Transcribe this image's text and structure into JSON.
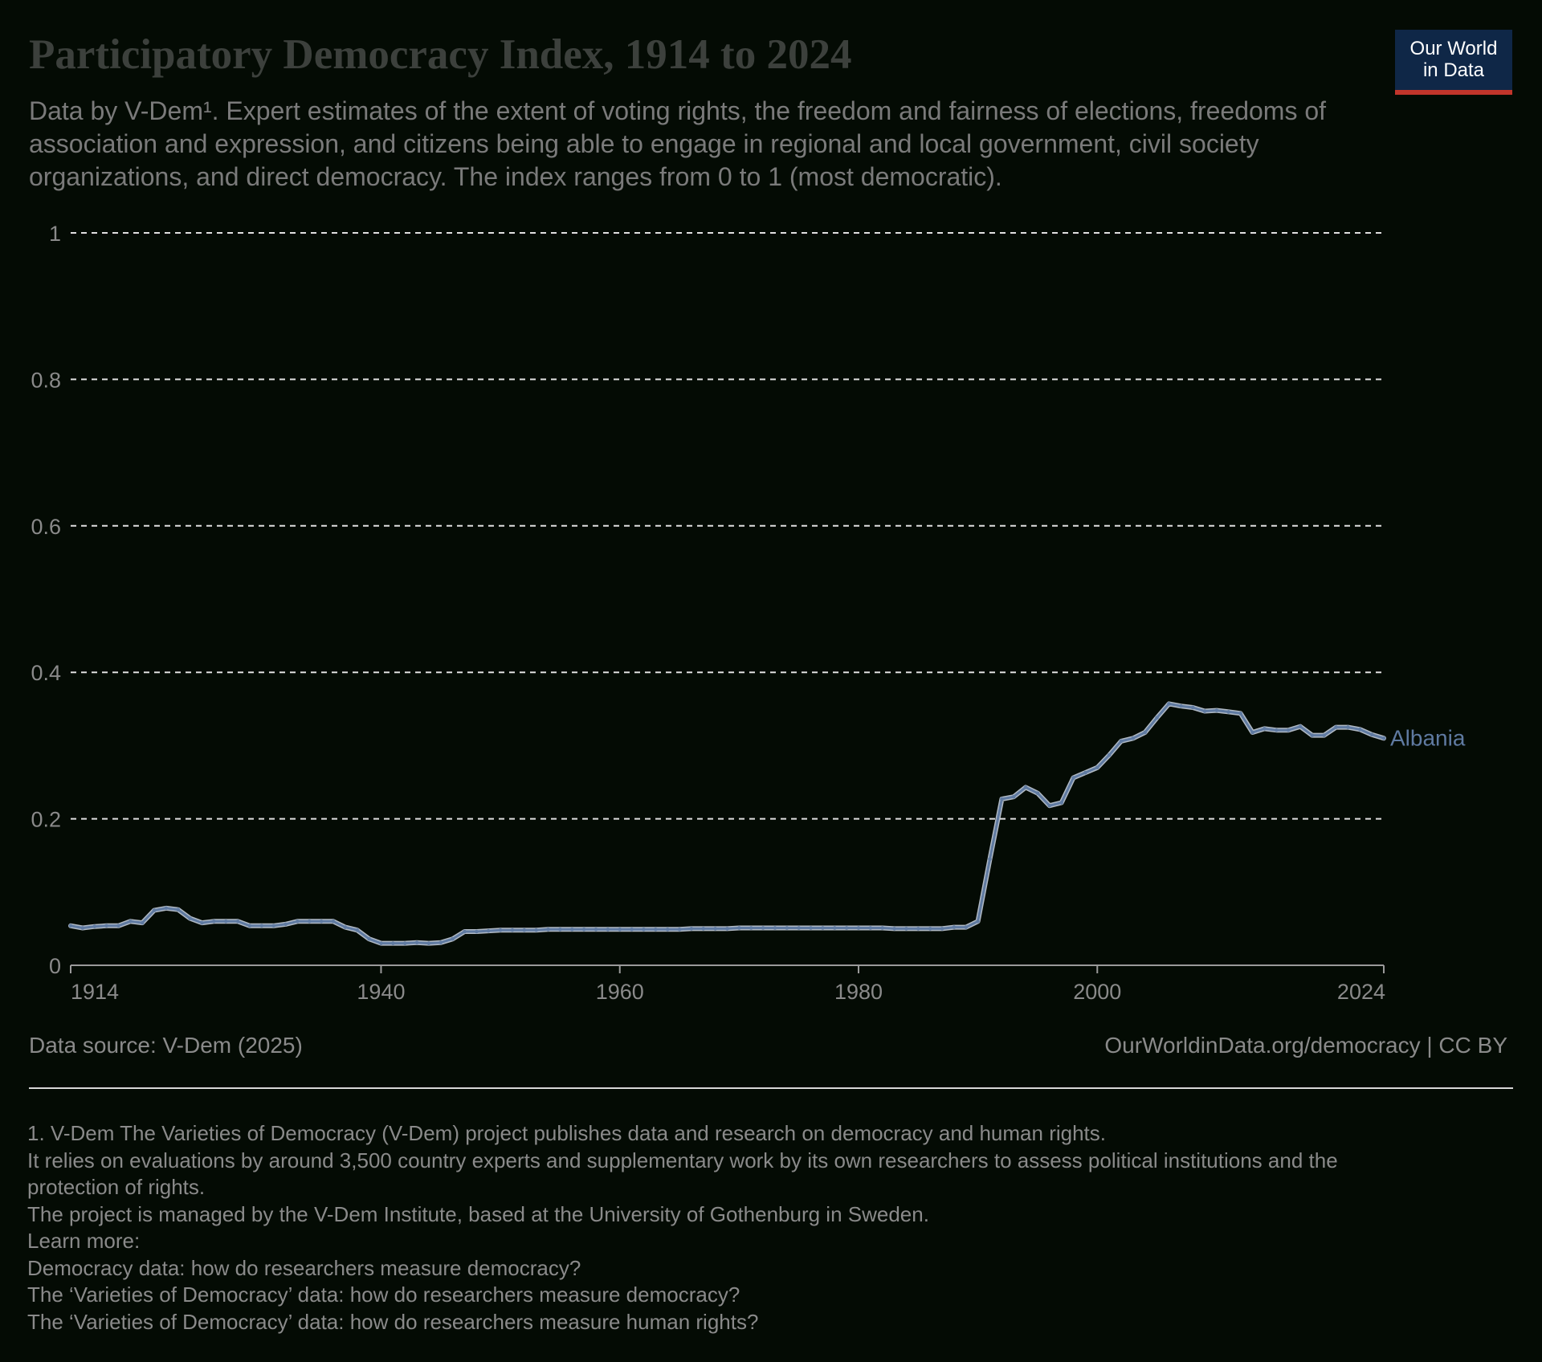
{
  "title": "Participatory Democracy Index, 1914 to 2024",
  "subtitle": "Data by V-Dem¹. Expert estimates of the extent of voting rights, the freedom and fairness of elections, freedoms of association and expression, and citizens being able to engage in regional and local government, civil society organizations, and direct democracy. The index ranges from 0 to 1 (most democratic).",
  "logo": {
    "line1": "Our World",
    "line2": "in Data"
  },
  "source_note": "Data source: V-Dem (2025)",
  "url_license": "OurWorldinData.org/democracy | CC BY",
  "footnote_lines": [
    "1. V-Dem The Varieties of Democracy (V-Dem) project publishes data and research on democracy and human rights.",
    "It relies on evaluations by around 3,500 country experts and supplementary work by its own researchers to assess political institutions and the",
    "protection of rights.",
    "The project is managed by the V-Dem Institute, based at the University of Gothenburg in Sweden.",
    "Learn more:",
    "Democracy data: how do researchers measure democracy?",
    "The ‘Varieties of Democracy’ data: how do researchers measure democracy?",
    "The ‘Varieties of Democracy’ data: how do researchers measure human rights?"
  ],
  "colors": {
    "series": "#5f7aa1",
    "grid": "#e0e0e0",
    "axis_text": "#8a8a8a",
    "background": "#040b04"
  },
  "chart_data": {
    "type": "line",
    "xlim": [
      1914,
      2024
    ],
    "ylim": [
      0,
      1
    ],
    "x_ticks": [
      "1914",
      "1940",
      "1960",
      "1980",
      "2000",
      "2024"
    ],
    "y_ticks": [
      "0",
      "0.2",
      "0.4",
      "0.6",
      "0.8",
      "1"
    ],
    "grid": "horizontal dashed",
    "series": [
      {
        "name": "Albania",
        "x": [
          1914,
          1915,
          1916,
          1917,
          1918,
          1919,
          1920,
          1921,
          1922,
          1923,
          1924,
          1925,
          1926,
          1927,
          1928,
          1929,
          1930,
          1931,
          1932,
          1933,
          1934,
          1935,
          1936,
          1937,
          1938,
          1939,
          1940,
          1941,
          1942,
          1943,
          1944,
          1945,
          1946,
          1947,
          1948,
          1949,
          1950,
          1951,
          1952,
          1953,
          1954,
          1955,
          1956,
          1957,
          1958,
          1959,
          1960,
          1961,
          1962,
          1963,
          1964,
          1965,
          1966,
          1967,
          1968,
          1969,
          1970,
          1971,
          1972,
          1973,
          1974,
          1975,
          1976,
          1977,
          1978,
          1979,
          1980,
          1981,
          1982,
          1983,
          1984,
          1985,
          1986,
          1987,
          1988,
          1989,
          1990,
          1991,
          1992,
          1993,
          1994,
          1995,
          1996,
          1997,
          1998,
          1999,
          2000,
          2001,
          2002,
          2003,
          2004,
          2005,
          2006,
          2007,
          2008,
          2009,
          2010,
          2011,
          2012,
          2013,
          2014,
          2015,
          2016,
          2017,
          2018,
          2019,
          2020,
          2021,
          2022,
          2023,
          2024
        ],
        "y": [
          0.054,
          0.051,
          0.053,
          0.054,
          0.054,
          0.06,
          0.058,
          0.075,
          0.078,
          0.076,
          0.064,
          0.058,
          0.06,
          0.06,
          0.06,
          0.054,
          0.054,
          0.054,
          0.056,
          0.06,
          0.06,
          0.06,
          0.06,
          0.052,
          0.048,
          0.036,
          0.03,
          0.03,
          0.03,
          0.031,
          0.03,
          0.031,
          0.036,
          0.046,
          0.046,
          0.047,
          0.048,
          0.048,
          0.048,
          0.048,
          0.049,
          0.049,
          0.049,
          0.049,
          0.049,
          0.049,
          0.049,
          0.049,
          0.049,
          0.049,
          0.049,
          0.049,
          0.05,
          0.05,
          0.05,
          0.05,
          0.051,
          0.051,
          0.051,
          0.051,
          0.051,
          0.051,
          0.051,
          0.051,
          0.051,
          0.051,
          0.051,
          0.051,
          0.051,
          0.05,
          0.05,
          0.05,
          0.05,
          0.05,
          0.052,
          0.052,
          0.06,
          0.145,
          0.227,
          0.23,
          0.243,
          0.235,
          0.218,
          0.222,
          0.256,
          0.263,
          0.27,
          0.287,
          0.306,
          0.31,
          0.318,
          0.338,
          0.357,
          0.354,
          0.352,
          0.347,
          0.348,
          0.346,
          0.344,
          0.318,
          0.323,
          0.321,
          0.321,
          0.326,
          0.314,
          0.314,
          0.325,
          0.325,
          0.322,
          0.315,
          0.31
        ]
      }
    ]
  }
}
